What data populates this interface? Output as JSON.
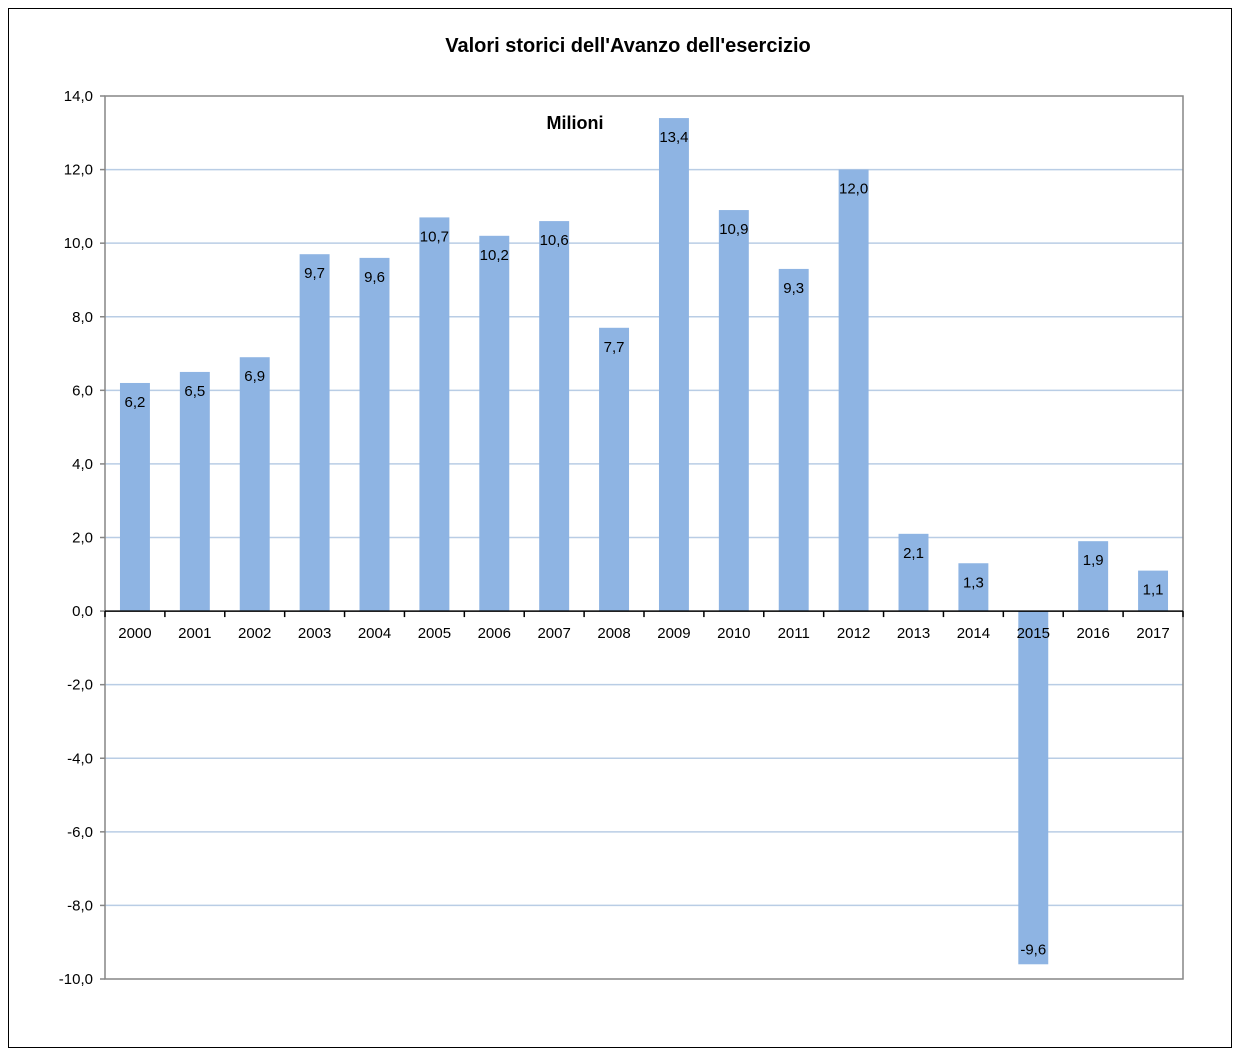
{
  "chart_data": {
    "type": "bar",
    "title": "Valori storici dell'Avanzo  dell'esercizio",
    "unit_label": "Milioni",
    "categories": [
      "2000",
      "2001",
      "2002",
      "2003",
      "2004",
      "2005",
      "2006",
      "2007",
      "2008",
      "2009",
      "2010",
      "2011",
      "2012",
      "2013",
      "2014",
      "2015",
      "2016",
      "2017"
    ],
    "values": [
      6.2,
      6.5,
      6.9,
      9.7,
      9.6,
      10.7,
      10.2,
      10.6,
      7.7,
      13.4,
      10.9,
      9.3,
      12.0,
      2.1,
      1.3,
      -9.6,
      1.9,
      1.1
    ],
    "data_labels": [
      "6,2",
      "6,5",
      "6,9",
      "9,7",
      "9,6",
      "10,7",
      "10,2",
      "10,6",
      "7,7",
      "13,4",
      "10,9",
      "9,3",
      "12,0",
      "2,1",
      "1,3",
      "-9,6",
      "1,9",
      "1,1"
    ],
    "ylim": [
      -10,
      14
    ],
    "y_ticks": [
      14,
      12,
      10,
      8,
      6,
      4,
      2,
      0,
      -2,
      -4,
      -6,
      -8,
      -10
    ],
    "y_tick_labels": [
      "14,0",
      "12,0",
      "10,0",
      "8,0",
      "6,0",
      "4,0",
      "2,0",
      "0,0",
      "-2,0",
      "-4,0",
      "-6,0",
      "-8,0",
      "-10,0"
    ],
    "grid": true,
    "legend": "none",
    "bar_color": "#8eb4e3",
    "grid_color": "#b9cde5",
    "axis_color": "#868686"
  }
}
